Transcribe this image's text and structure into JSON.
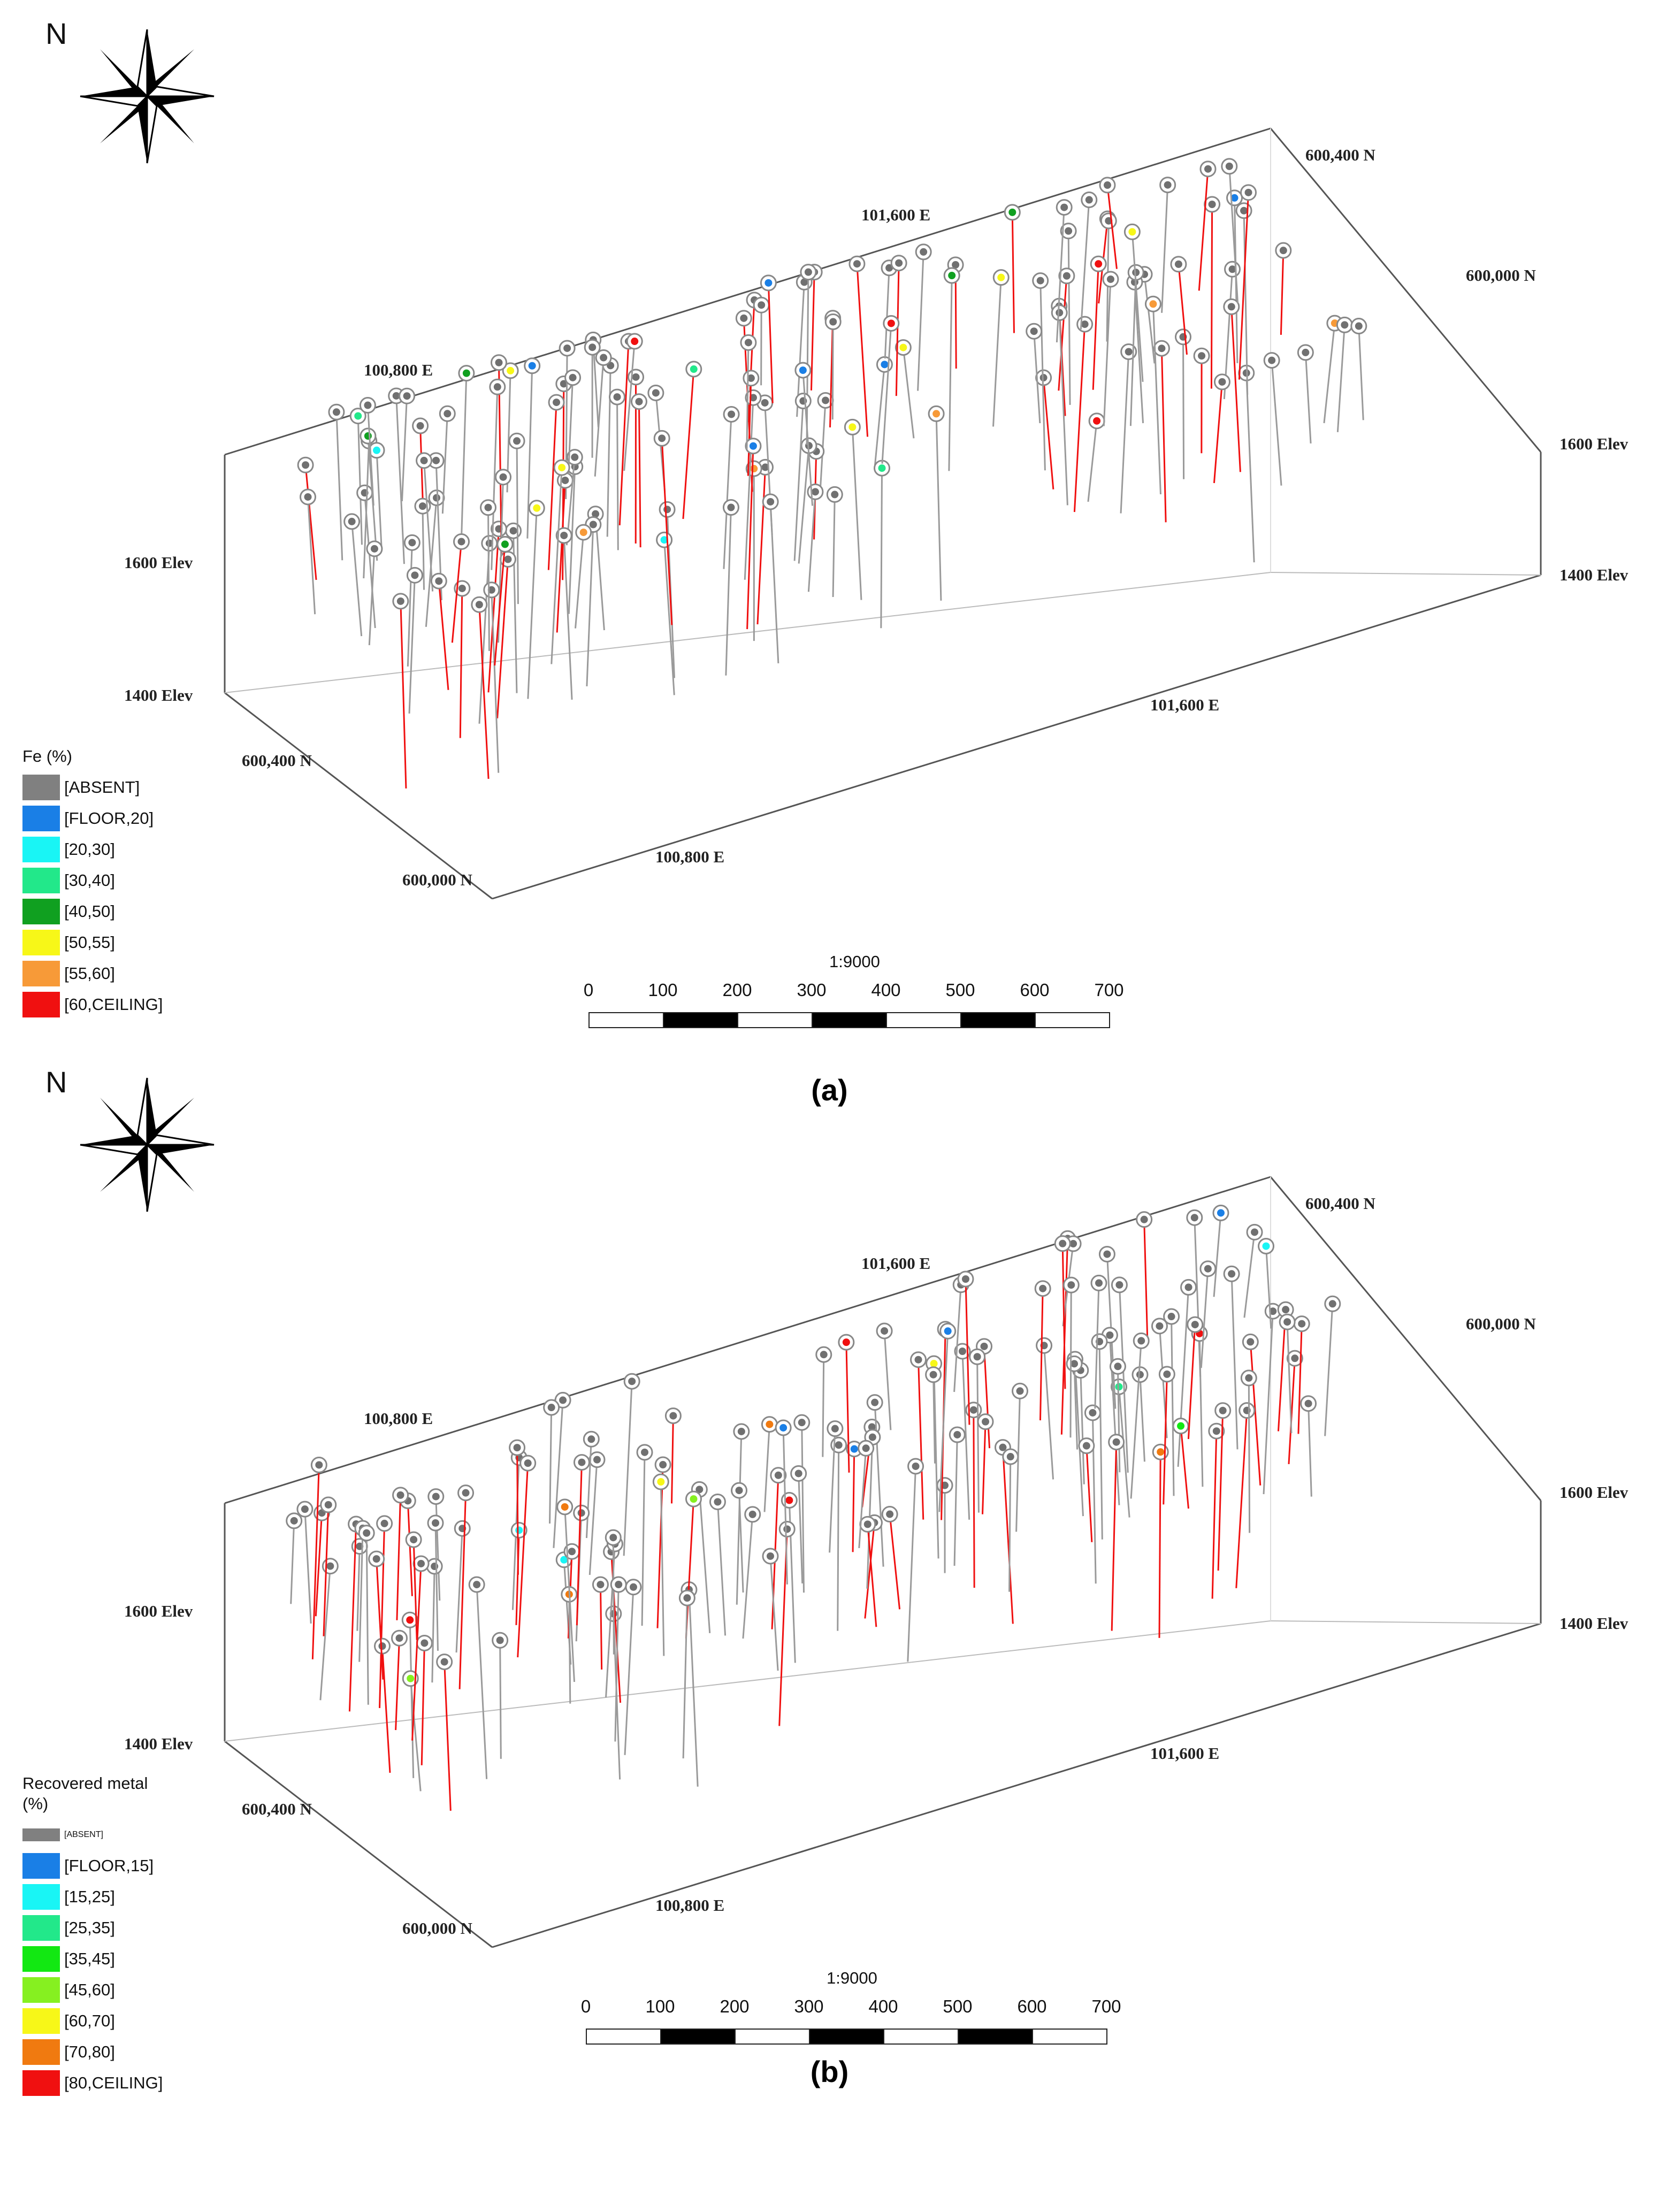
{
  "panels": [
    {
      "id": "a",
      "caption": "(a)",
      "north_label": "N",
      "legend": {
        "title": "Fe (%)",
        "items": [
          {
            "label": "[ABSENT]",
            "color": "#808080"
          },
          {
            "label": "[FLOOR,20]",
            "color": "#1a7fe6"
          },
          {
            "label": "[20,30]",
            "color": "#19f5f5"
          },
          {
            "label": "[30,40]",
            "color": "#22e88a"
          },
          {
            "label": "[40,50]",
            "color": "#10a020"
          },
          {
            "label": "[50,55]",
            "color": "#f7f718"
          },
          {
            "label": "[55,60]",
            "color": "#f79a38"
          },
          {
            "label": "[60,CEILING]",
            "color": "#f01010"
          }
        ]
      },
      "axis_labels": {
        "northing_top": "600,400 N",
        "northing_top_right": "600,000 N",
        "easting_top": "101,600 E",
        "easting_top_left": "100,800 E",
        "elev_right_upper": "1600 Elev",
        "elev_right_lower": "1400 Elev",
        "elev_left_upper": "1600 Elev",
        "elev_left_lower": "1400 Elev",
        "easting_bottom_right": "101,600 E",
        "northing_bottom_left": "600,400 N",
        "easting_bottom": "100,800 E",
        "northing_bottom": "600,000 N"
      },
      "scale": {
        "ratio": "1:9000",
        "ticks": [
          "0",
          "100",
          "200",
          "300",
          "400",
          "500",
          "600",
          "700"
        ]
      }
    },
    {
      "id": "b",
      "caption": "(b)",
      "north_label": "N",
      "legend": {
        "title": "Recovered metal (%)",
        "items": [
          {
            "label": "[ABSENT]",
            "color": "#808080"
          },
          {
            "label": "[FLOOR,15]",
            "color": "#1a7fe6"
          },
          {
            "label": "[15,25]",
            "color": "#19f5f5"
          },
          {
            "label": "[25,35]",
            "color": "#22e88a"
          },
          {
            "label": "[35,45]",
            "color": "#12e812"
          },
          {
            "label": "[45,60]",
            "color": "#86f020"
          },
          {
            "label": "[60,70]",
            "color": "#f7f718"
          },
          {
            "label": "[70,80]",
            "color": "#f07a10"
          },
          {
            "label": "[80,CEILING]",
            "color": "#f01010"
          }
        ]
      },
      "axis_labels": {
        "northing_top": "600,400 N",
        "northing_top_right": "600,000 N",
        "easting_top": "101,600 E",
        "easting_top_left": "100,800 E",
        "elev_right_upper": "1600 Elev",
        "elev_right_lower": "1400 Elev",
        "elev_left_upper": "1600 Elev",
        "elev_left_lower": "1400 Elev",
        "easting_bottom_right": "101,600 E",
        "northing_bottom_left": "600,400 N",
        "easting_bottom": "100,800 E",
        "northing_bottom": "600,000 N"
      },
      "scale": {
        "ratio": "1:9000",
        "ticks": [
          "0",
          "100",
          "200",
          "300",
          "400",
          "500",
          "600",
          "700"
        ]
      }
    }
  ]
}
